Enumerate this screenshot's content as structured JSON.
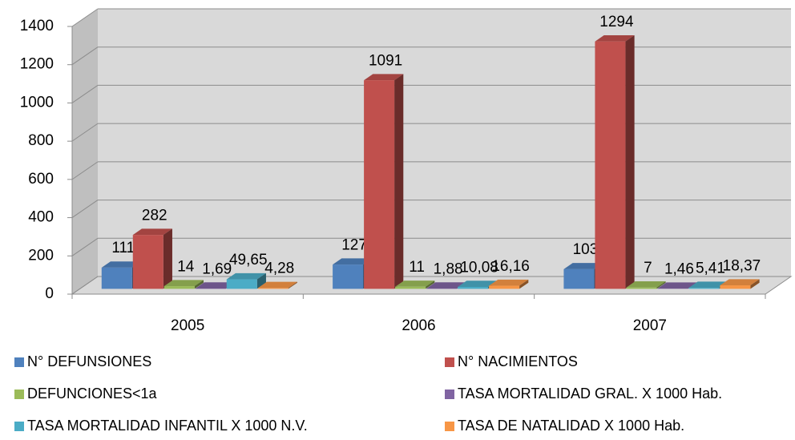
{
  "chart_data": {
    "type": "bar3d",
    "categories": [
      "2005",
      "2006",
      "2007"
    ],
    "series": [
      {
        "name": "N° DEFUNSIONES",
        "color": "#4f81bd",
        "values": [
          111,
          127,
          103
        ]
      },
      {
        "name": "N° NACIMIENTOS",
        "color": "#c0504d",
        "values": [
          282,
          1091,
          1294
        ]
      },
      {
        "name": "DEFUNCIONES<1a",
        "color": "#9bbb59",
        "values": [
          14,
          11,
          7
        ]
      },
      {
        "name": "TASA MORTALIDAD GRAL. X 1000 Hab.",
        "color": "#8064a2",
        "values": [
          1.69,
          1.88,
          1.46
        ],
        "value_labels": [
          "1,69",
          "1,88",
          "1,46"
        ]
      },
      {
        "name": "TASA MORTALIDAD INFANTIL X 1000 N.V.",
        "color": "#4bacc6",
        "values": [
          49.65,
          10.08,
          5.41
        ],
        "value_labels": [
          "49,65",
          "10,08",
          "5,41"
        ]
      },
      {
        "name": "TASA DE NATALIDAD X 1000 Hab.",
        "color": "#f79646",
        "values": [
          4.28,
          16.16,
          18.37
        ],
        "value_labels": [
          "4,28",
          "16,16",
          "18,37"
        ]
      }
    ],
    "ylim": [
      0,
      1400
    ],
    "yticks": [
      0,
      200,
      400,
      600,
      800,
      1000,
      1200,
      1400
    ],
    "grid": true,
    "legend": "bottom"
  }
}
